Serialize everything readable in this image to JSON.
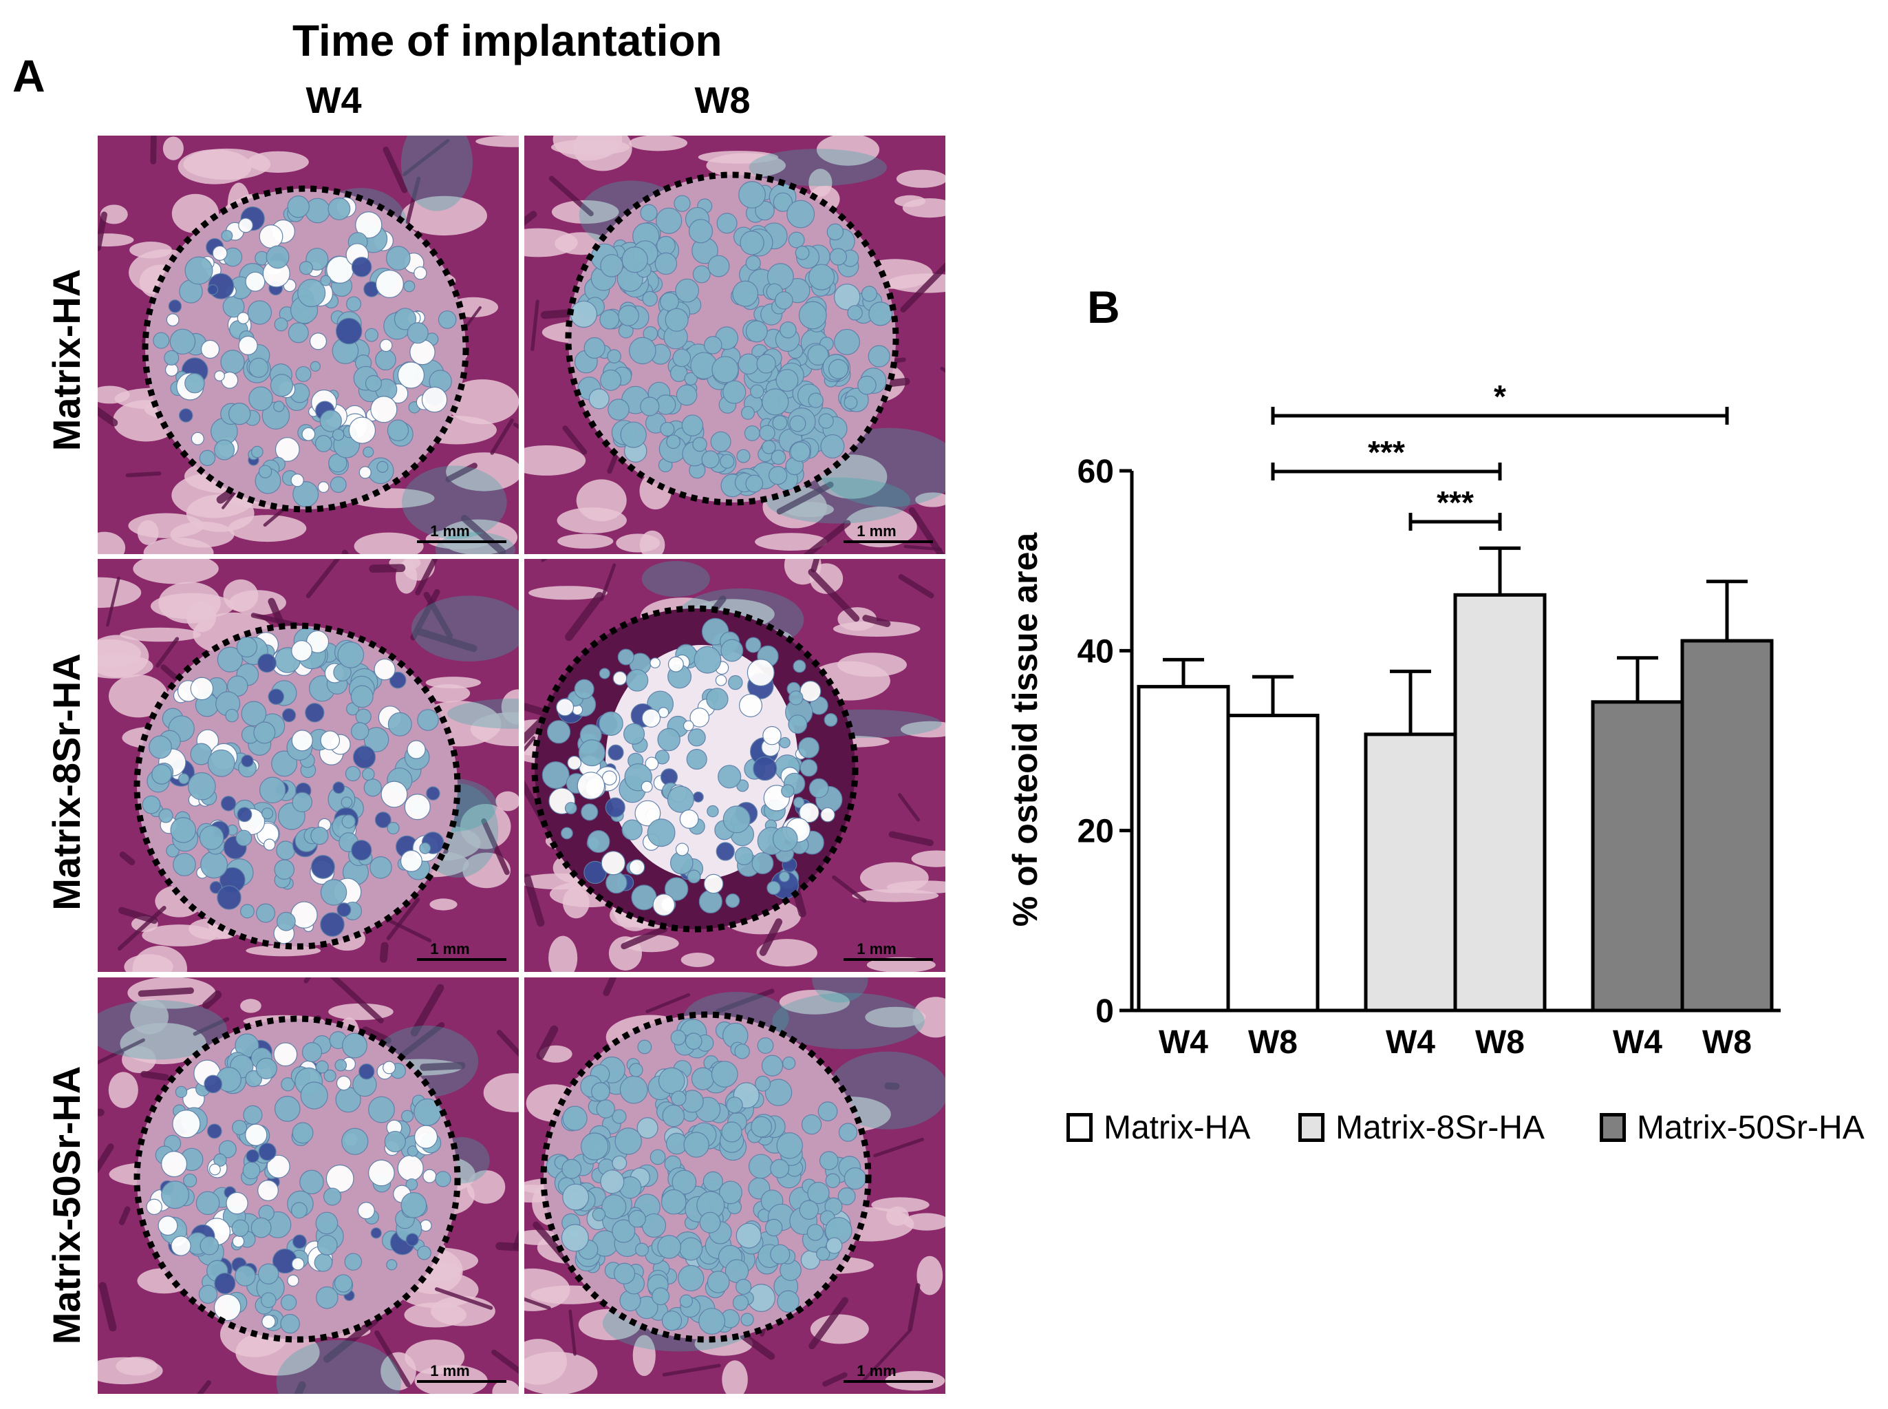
{
  "panel_a": {
    "letter": "A",
    "title": "Time of implantation",
    "columns": [
      "W4",
      "W8"
    ],
    "rows": [
      "Matrix-HA",
      "Matrix-8Sr-HA",
      "Matrix-50Sr-HA"
    ],
    "scale_bar": "1 mm",
    "colors": {
      "tissue": "#8a2a6a",
      "tissue_dark": "#5a1448",
      "marrow": "#e6c4d4",
      "granule": "#7fb3c8",
      "granule_dark": "#3a4f9a",
      "collagen": "#3aa9a9"
    }
  },
  "panel_b": {
    "letter": "B",
    "legend": [
      {
        "label": "Matrix-HA",
        "color": "#ffffff"
      },
      {
        "label": "Matrix-8Sr-HA",
        "color": "#e3e3e3"
      },
      {
        "label": "Matrix-50Sr-HA",
        "color": "#808080"
      }
    ]
  },
  "chart_data": {
    "type": "bar",
    "ylabel": "% of osteoid tissue area",
    "ylim": [
      0,
      60
    ],
    "yticks": [
      0,
      20,
      40,
      60
    ],
    "categories": [
      "W4",
      "W8",
      "W4",
      "W8",
      "W4",
      "W8"
    ],
    "groups": [
      "Matrix-HA",
      "Matrix-8Sr-HA",
      "Matrix-50Sr-HA"
    ],
    "values": [
      36.0,
      32.8,
      30.7,
      46.2,
      34.3,
      41.1
    ],
    "errors": [
      3.0,
      4.3,
      7.0,
      5.2,
      4.9,
      6.6
    ],
    "colors": [
      "#ffffff",
      "#ffffff",
      "#e3e3e3",
      "#e3e3e3",
      "#808080",
      "#808080"
    ],
    "significance": [
      {
        "from": 1,
        "to": 5,
        "label": "*"
      },
      {
        "from": 1,
        "to": 3,
        "label": "***"
      },
      {
        "from": 2,
        "to": 3,
        "label": "***"
      }
    ]
  }
}
